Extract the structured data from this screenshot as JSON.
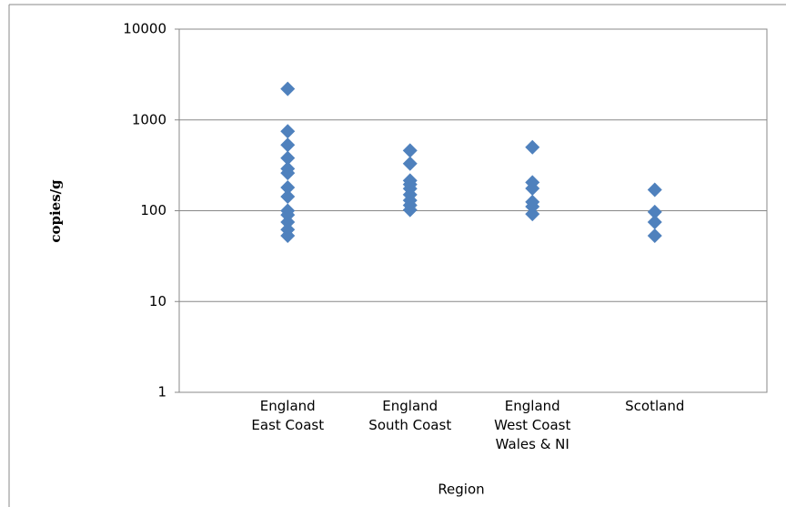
{
  "chart_data": {
    "type": "strip",
    "y_label": "copies/g",
    "x_label": "Region",
    "categories": [
      "England\nEast Coast",
      "England\nSouth Coast",
      "England\nWest Coast\nWales & NI",
      "Scotland"
    ],
    "values": [
      [
        2200,
        750,
        530,
        380,
        290,
        260,
        180,
        143,
        100,
        90,
        75,
        62,
        53
      ],
      [
        460,
        330,
        215,
        195,
        175,
        150,
        130,
        115,
        102
      ],
      [
        500,
        205,
        176,
        125,
        111,
        92
      ],
      [
        170,
        97,
        75,
        53
      ]
    ],
    "color": "#4f81bd",
    "log_scale": true,
    "grid": true,
    "ylim": [
      1,
      10000
    ],
    "yticks": [
      1,
      10,
      100,
      1000,
      10000
    ]
  }
}
